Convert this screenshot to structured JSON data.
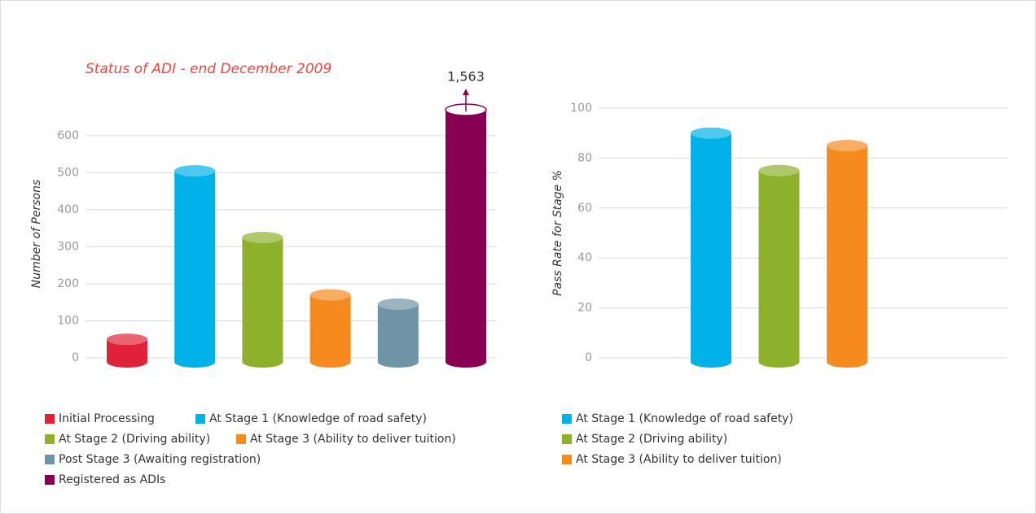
{
  "chart_data": [
    {
      "type": "bar",
      "title": "Status of ADI - end December 2009",
      "y_label": "Number of Persons",
      "ylim": [
        0,
        670
      ],
      "yticks": [
        0,
        100,
        200,
        300,
        400,
        500,
        600
      ],
      "grid": true,
      "series": [
        {
          "name": "Initial Processing",
          "color": "#e0213a",
          "values": [
            50
          ]
        },
        {
          "name": "At Stage 1 (Knowledge of road safety)",
          "color": "#00b2e8",
          "values": [
            505
          ]
        },
        {
          "name": "At Stage 2 (Driving ability)",
          "color": "#8db12b",
          "values": [
            325
          ]
        },
        {
          "name": "At Stage 3 (Ability to deliver tuition)",
          "color": "#f58a1f",
          "values": [
            170
          ]
        },
        {
          "name": "Post Stage 3 (Awaiting registration)",
          "color": "#6f94a8",
          "values": [
            145
          ]
        },
        {
          "name": "Registered as ADIs",
          "color": "#870052",
          "values": [
            1563
          ],
          "value_labels": [
            "1,563"
          ]
        }
      ]
    },
    {
      "type": "bar",
      "y_label": "Pass Rate for Stage %",
      "ylim": [
        0,
        100
      ],
      "yticks": [
        0,
        20,
        40,
        60,
        80,
        100
      ],
      "grid": true,
      "series": [
        {
          "name": "At Stage 1 (Knowledge of road safety)",
          "color": "#00b2e8",
          "values": [
            90
          ]
        },
        {
          "name": "At Stage 2 (Driving ability)",
          "color": "#8db12b",
          "values": [
            75
          ]
        },
        {
          "name": "At Stage 3 (Ability to deliver tuition)",
          "color": "#f58a1f",
          "values": [
            85
          ]
        }
      ]
    }
  ]
}
